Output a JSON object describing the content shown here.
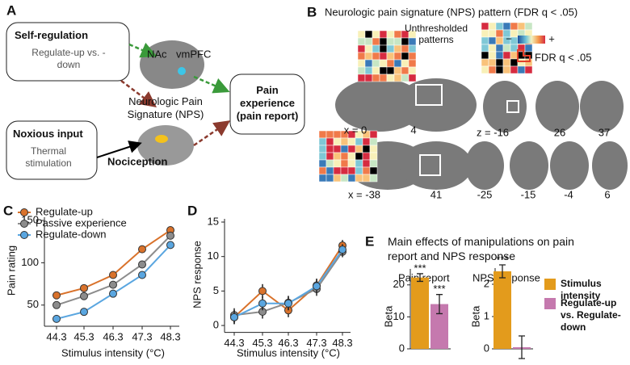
{
  "panels": {
    "A": "A",
    "B": "B",
    "C": "C",
    "D": "D",
    "E": "E"
  },
  "diagram": {
    "self_regulation": "Self-regulation",
    "regulate": "Regulate-up vs. -down",
    "nac": "NAc",
    "vmpfc": "vmPFC",
    "nps": "Neurologic Pain Signature (NPS)",
    "pain_experience": "Pain experience (pain report)",
    "noxious": "Noxious input",
    "thermal": "Thermal stimulation",
    "nociception": "Nociception"
  },
  "brain": {
    "title": "Neurologic pain signature (NPS) pattern (FDR q < .05)",
    "unthresholded": "Unthresholded patterns",
    "minus": "−",
    "plus": "+",
    "fdr": "FDR q < .05",
    "slices": [
      "x = 0",
      "4",
      "z = -16",
      "26",
      "37",
      "x = -38",
      "41",
      "-25",
      "-15",
      "-4",
      "6"
    ]
  },
  "chart_data": [
    {
      "type": "line",
      "ylabel": "Pain rating",
      "xlabel": "Stimulus intensity (°C)",
      "categories": [
        "44.3",
        "45.3",
        "46.3",
        "47.3",
        "48.3"
      ],
      "ylim": [
        25,
        150
      ],
      "yticks": [
        50,
        100,
        150
      ],
      "legend": "upper left",
      "series": [
        {
          "name": "Regulate-up",
          "color": "#d9722b",
          "values": [
            61.5,
            70,
            85.6,
            116,
            138.5
          ],
          "errors": [
            3,
            3,
            4,
            4,
            3
          ]
        },
        {
          "name": "Passive experience",
          "color": "#8c8c8c",
          "values": [
            50,
            60.6,
            74,
            98,
            132
          ],
          "errors": [
            3,
            3,
            4,
            4,
            3
          ]
        },
        {
          "name": "Regulate-down",
          "color": "#5aa6e0",
          "values": [
            33.7,
            42,
            63.5,
            85.6,
            121
          ],
          "errors": [
            3,
            3,
            4,
            4,
            3
          ]
        }
      ]
    },
    {
      "type": "line",
      "ylabel": "NPS response",
      "xlabel": "Stimulus intensity (°C)",
      "categories": [
        "44.3",
        "45.3",
        "46.3",
        "47.3",
        "48.3"
      ],
      "ylim": [
        -1,
        15
      ],
      "yticks": [
        0,
        5,
        10,
        15
      ],
      "series": [
        {
          "color": "#d9722b",
          "values": [
            1.2,
            5.0,
            2.2,
            5.8,
            11.6
          ],
          "errors": [
            1,
            1,
            1,
            1,
            0.8
          ]
        },
        {
          "color": "#8c8c8c",
          "values": [
            1.5,
            2.0,
            3.3,
            5.3,
            10.7
          ],
          "errors": [
            1,
            1,
            1,
            1,
            0.8
          ]
        },
        {
          "color": "#5aa6e0",
          "values": [
            1.2,
            3.2,
            3.2,
            5.7,
            11.0
          ],
          "errors": [
            1,
            1,
            1,
            1,
            0.8
          ]
        }
      ]
    },
    {
      "type": "bar",
      "panel_title": "Main effects of manipulations on pain report and NPS response",
      "title": "Pain report",
      "ylabel": "Beta",
      "ylim": [
        0,
        25
      ],
      "yticks": [
        0,
        10,
        20
      ],
      "values": [
        22.3,
        14
      ],
      "errors": [
        1.2,
        3
      ],
      "colors": [
        "#e39b1c",
        "#c579ae"
      ],
      "significance": [
        "***",
        "***"
      ],
      "legend_labels": [
        "Stimulus intensity",
        "Regulate-up vs. Regulate-down"
      ]
    },
    {
      "type": "bar",
      "title": "NPS response",
      "ylabel": "Beta",
      "ylim": [
        0,
        2.5
      ],
      "yticks": [
        0,
        1,
        2
      ],
      "values": [
        2.4,
        0.05
      ],
      "errors": [
        0.2,
        0.35
      ],
      "colors": [
        "#e39b1c",
        "#c579ae"
      ],
      "significance": [
        "***"
      ]
    }
  ]
}
